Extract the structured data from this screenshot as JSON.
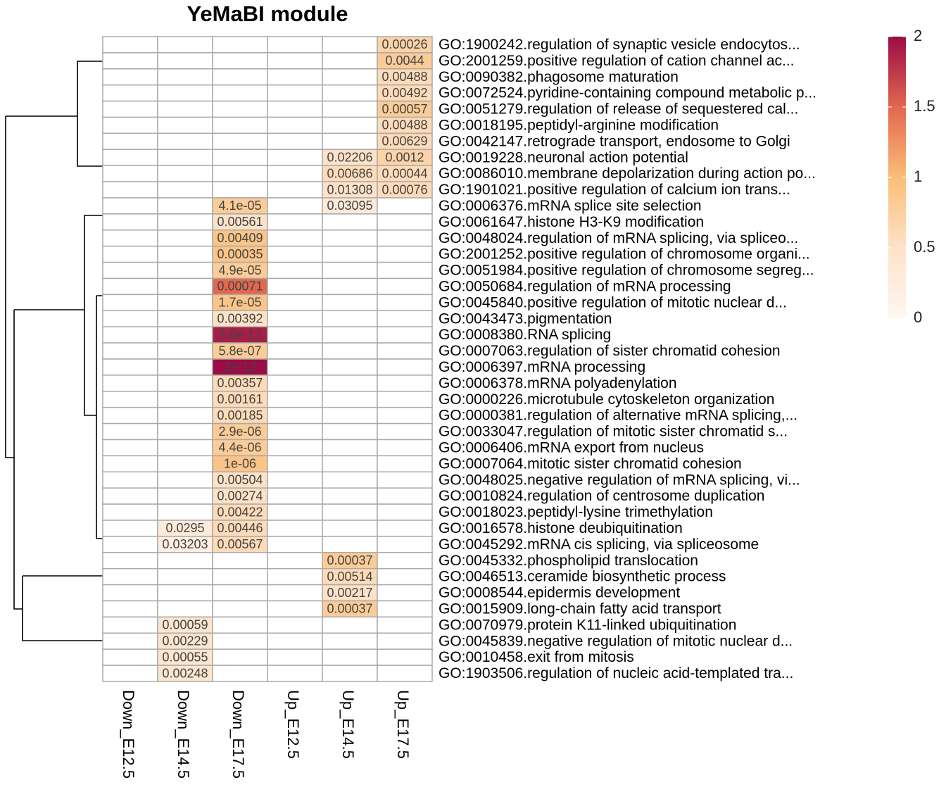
{
  "chart_data": {
    "type": "heatmap",
    "title": "YeMaBI module",
    "columns": [
      "Down_E12.5",
      "Down_E14.5",
      "Down_E17.5",
      "Up_E12.5",
      "Up_E14.5",
      "Up_E17.5"
    ],
    "rows": [
      "GO:1900242.regulation of synaptic vesicle endocytos...",
      "GO:2001259.positive regulation of cation channel ac...",
      "GO:0090382.phagosome maturation",
      "GO:0072524.pyridine-containing compound metabolic p...",
      "GO:0051279.regulation of release of sequestered cal...",
      "GO:0018195.peptidyl-arginine modification",
      "GO:0042147.retrograde transport, endosome to Golgi",
      "GO:0019228.neuronal action potential",
      "GO:0086010.membrane depolarization during action po...",
      "GO:1901021.positive regulation of calcium ion trans...",
      "GO:0006376.mRNA splice site selection",
      "GO:0061647.histone H3-K9 modification",
      "GO:0048024.regulation of mRNA splicing, via spliceo...",
      "GO:2001252.positive regulation of chromosome organi...",
      "GO:0051984.positive regulation of chromosome segreg...",
      "GO:0050684.regulation of mRNA processing",
      "GO:0045840.positive regulation of mitotic nuclear d...",
      "GO:0043473.pigmentation",
      "GO:0008380.RNA splicing",
      "GO:0007063.regulation of sister chromatid cohesion",
      "GO:0006397.mRNA processing",
      "GO:0006378.mRNA polyadenylation",
      "GO:0000226.microtubule cytoskeleton organization",
      "GO:0000381.regulation of alternative mRNA splicing,...",
      "GO:0033047.regulation of mitotic sister chromatid s...",
      "GO:0006406.mRNA export from nucleus",
      "GO:0007064.mitotic sister chromatid cohesion",
      "GO:0048025.negative regulation of mRNA splicing, vi...",
      "GO:0010824.regulation of centrosome duplication",
      "GO:0018023.peptidyl-lysine trimethylation",
      "GO:0016578.histone deubiquitination",
      "GO:0045292.mRNA cis splicing, via spliceosome",
      "GO:0045332.phospholipid translocation",
      "GO:0046513.ceramide biosynthetic process",
      "GO:0008544.epidermis development",
      "GO:0015909.long-chain fatty acid transport",
      "GO:0070979.protein K11-linked ubiquitination",
      "GO:0045839.negative regulation of mitotic nuclear d...",
      "GO:0010458.exit from mitosis",
      "GO:1903506.regulation of nucleic acid-templated tra..."
    ],
    "values": [
      [
        null,
        null,
        null,
        null,
        null,
        0.7
      ],
      [
        null,
        null,
        null,
        null,
        null,
        0.8
      ],
      [
        null,
        null,
        null,
        null,
        null,
        0.6
      ],
      [
        null,
        null,
        null,
        null,
        null,
        0.6
      ],
      [
        null,
        null,
        null,
        null,
        null,
        0.8
      ],
      [
        null,
        null,
        null,
        null,
        null,
        0.6
      ],
      [
        null,
        null,
        null,
        null,
        null,
        0.6
      ],
      [
        null,
        null,
        null,
        null,
        0.5,
        0.7
      ],
      [
        null,
        null,
        null,
        null,
        0.6,
        0.6
      ],
      [
        null,
        null,
        null,
        null,
        0.5,
        0.6
      ],
      [
        null,
        null,
        0.8,
        null,
        0.3,
        null
      ],
      [
        null,
        null,
        0.5,
        null,
        null,
        null
      ],
      [
        null,
        null,
        0.9,
        null,
        null,
        null
      ],
      [
        null,
        null,
        0.9,
        null,
        null,
        null
      ],
      [
        null,
        null,
        0.8,
        null,
        null,
        null
      ],
      [
        null,
        null,
        1.5,
        null,
        null,
        null
      ],
      [
        null,
        null,
        0.9,
        null,
        null,
        null
      ],
      [
        null,
        null,
        0.5,
        null,
        null,
        null
      ],
      [
        null,
        null,
        1.9,
        null,
        null,
        null
      ],
      [
        null,
        null,
        0.8,
        null,
        null,
        null
      ],
      [
        null,
        null,
        2,
        null,
        null,
        null
      ],
      [
        null,
        null,
        0.6,
        null,
        null,
        null
      ],
      [
        null,
        null,
        0.6,
        null,
        null,
        null
      ],
      [
        null,
        null,
        0.6,
        null,
        null,
        null
      ],
      [
        null,
        null,
        0.8,
        null,
        null,
        null
      ],
      [
        null,
        null,
        0.8,
        null,
        null,
        null
      ],
      [
        null,
        null,
        0.9,
        null,
        null,
        null
      ],
      [
        null,
        null,
        0.5,
        null,
        null,
        null
      ],
      [
        null,
        null,
        0.5,
        null,
        null,
        null
      ],
      [
        null,
        null,
        0.6,
        null,
        null,
        null
      ],
      [
        null,
        0.3,
        0.6,
        null,
        null,
        null
      ],
      [
        null,
        0.2,
        0.6,
        null,
        null,
        null
      ],
      [
        null,
        null,
        null,
        null,
        0.8,
        null
      ],
      [
        null,
        null,
        null,
        null,
        0.6,
        null
      ],
      [
        null,
        null,
        null,
        null,
        0.5,
        null
      ],
      [
        null,
        null,
        null,
        null,
        0.8,
        null
      ],
      [
        null,
        0.4,
        null,
        null,
        null,
        null
      ],
      [
        null,
        0.4,
        null,
        null,
        null,
        null
      ],
      [
        null,
        0.4,
        null,
        null,
        null,
        null
      ],
      [
        null,
        0.4,
        null,
        null,
        null,
        null
      ]
    ],
    "cell_labels": [
      [
        null,
        null,
        null,
        null,
        null,
        "0.00026"
      ],
      [
        null,
        null,
        null,
        null,
        null,
        "0.0044"
      ],
      [
        null,
        null,
        null,
        null,
        null,
        "0.00488"
      ],
      [
        null,
        null,
        null,
        null,
        null,
        "0.00492"
      ],
      [
        null,
        null,
        null,
        null,
        null,
        "0.00057"
      ],
      [
        null,
        null,
        null,
        null,
        null,
        "0.00488"
      ],
      [
        null,
        null,
        null,
        null,
        null,
        "0.00629"
      ],
      [
        null,
        null,
        null,
        null,
        "0.02206",
        "0.0012"
      ],
      [
        null,
        null,
        null,
        null,
        "0.00686",
        "0.00044"
      ],
      [
        null,
        null,
        null,
        null,
        "0.01308",
        "0.00076"
      ],
      [
        null,
        null,
        "4.1e-05",
        null,
        "0.03095",
        null
      ],
      [
        null,
        null,
        "0.00561",
        null,
        null,
        null
      ],
      [
        null,
        null,
        "0.00409",
        null,
        null,
        null
      ],
      [
        null,
        null,
        "0.00035",
        null,
        null,
        null
      ],
      [
        null,
        null,
        "4.9e-05",
        null,
        null,
        null
      ],
      [
        null,
        null,
        "0.00071",
        null,
        null,
        null
      ],
      [
        null,
        null,
        "1.7e-05",
        null,
        null,
        null
      ],
      [
        null,
        null,
        "0.00392",
        null,
        null,
        null
      ],
      [
        null,
        null,
        "8.8e-13",
        null,
        null,
        null
      ],
      [
        null,
        null,
        "5.8e-07",
        null,
        null,
        null
      ],
      [
        null,
        null,
        "2e-12",
        null,
        null,
        null
      ],
      [
        null,
        null,
        "0.00357",
        null,
        null,
        null
      ],
      [
        null,
        null,
        "0.00161",
        null,
        null,
        null
      ],
      [
        null,
        null,
        "0.00185",
        null,
        null,
        null
      ],
      [
        null,
        null,
        "2.9e-06",
        null,
        null,
        null
      ],
      [
        null,
        null,
        "4.4e-06",
        null,
        null,
        null
      ],
      [
        null,
        null,
        "1e-06",
        null,
        null,
        null
      ],
      [
        null,
        null,
        "0.00504",
        null,
        null,
        null
      ],
      [
        null,
        null,
        "0.00274",
        null,
        null,
        null
      ],
      [
        null,
        null,
        "0.00422",
        null,
        null,
        null
      ],
      [
        null,
        "0.0295",
        "0.00446",
        null,
        null,
        null
      ],
      [
        null,
        "0.03203",
        "0.00567",
        null,
        null,
        null
      ],
      [
        null,
        null,
        null,
        null,
        "0.00037",
        null
      ],
      [
        null,
        null,
        null,
        null,
        "0.00514",
        null
      ],
      [
        null,
        null,
        null,
        null,
        "0.00217",
        null
      ],
      [
        null,
        null,
        null,
        null,
        "0.00037",
        null
      ],
      [
        null,
        "0.00059",
        null,
        null,
        null,
        null
      ],
      [
        null,
        "0.00229",
        null,
        null,
        null,
        null
      ],
      [
        null,
        "0.00055",
        null,
        null,
        null,
        null
      ],
      [
        null,
        "0.00248",
        null,
        null,
        null,
        null
      ]
    ],
    "zlim": [
      0,
      2
    ],
    "zticks": [
      0,
      0.5,
      1,
      1.5,
      2
    ],
    "colormap": [
      "#fff7f0",
      "#fde2c8",
      "#fbbd78",
      "#e2674f",
      "#9b0b45"
    ]
  }
}
